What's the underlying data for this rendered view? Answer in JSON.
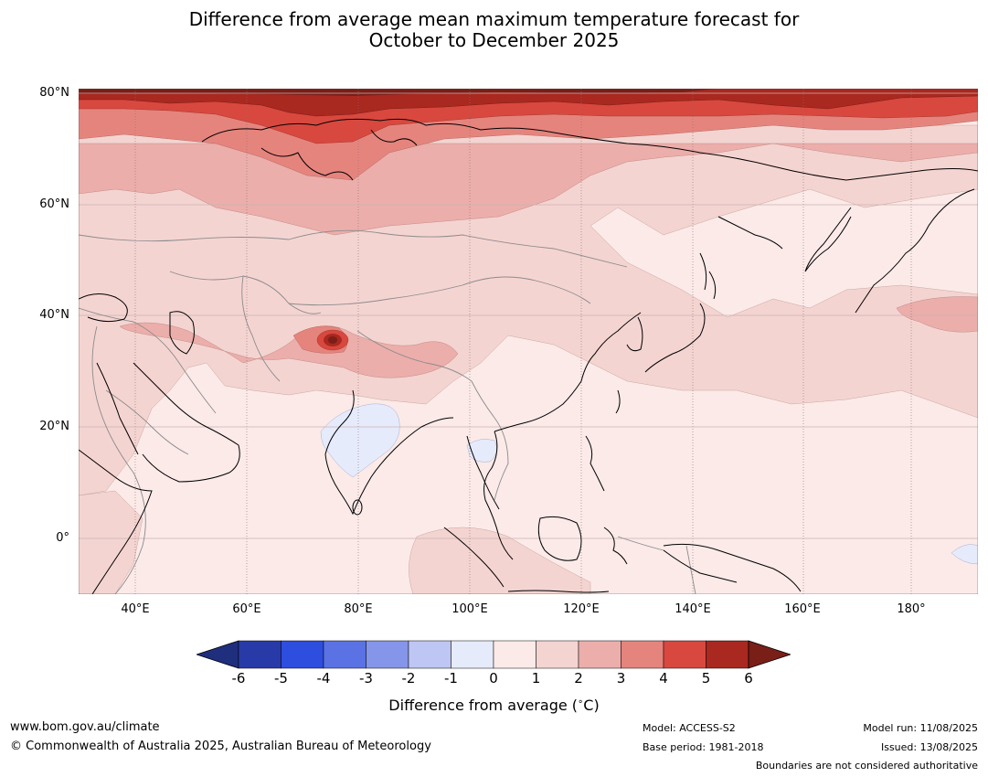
{
  "title_line1": "Difference from average mean maximum temperature forecast for",
  "title_line2": "October to December 2025",
  "map": {
    "lat_labels": [
      "80°N",
      "60°N",
      "40°N",
      "20°N",
      "0°"
    ],
    "lon_labels": [
      "40°E",
      "60°E",
      "80°E",
      "100°E",
      "120°E",
      "140°E",
      "160°E",
      "180°"
    ],
    "lon_range": [
      30,
      191
    ],
    "lat_range": [
      -10,
      80
    ],
    "region": "Asia / Western Pacific",
    "hotspot_lonlat": [
      75,
      35
    ],
    "cool_patch_lonlats": [
      [
        78,
        18
      ],
      [
        104,
        16
      ],
      [
        190,
        -3
      ]
    ]
  },
  "legend": {
    "ticks": [
      "-6",
      "-5",
      "-4",
      "-3",
      "-2",
      "-1",
      "0",
      "1",
      "2",
      "3",
      "4",
      "5",
      "6"
    ],
    "colors": [
      "#1f2f7e",
      "#283aa8",
      "#2e4ee0",
      "#5a72e3",
      "#8595e9",
      "#bec6f4",
      "#e6ebfc",
      "#fbeae8",
      "#f4d4d1",
      "#ecaeab",
      "#e5847d",
      "#d8483f",
      "#a9281f",
      "#7a1e18"
    ],
    "label": "Difference from average (",
    "label_unit": "C)",
    "label_degree": "∘"
  },
  "footer": {
    "website": "www.bom.gov.au/climate",
    "copyright": "© Commonwealth of Australia 2025, Australian Bureau of Meteorology",
    "model": "Model: ACCESS-S2",
    "base_period": "Base period: 1981-2018",
    "model_run": "Model run: 11/08/2025",
    "issued": "Issued: 13/08/2025",
    "boundaries_note": "Boundaries are not considered authoritative"
  }
}
